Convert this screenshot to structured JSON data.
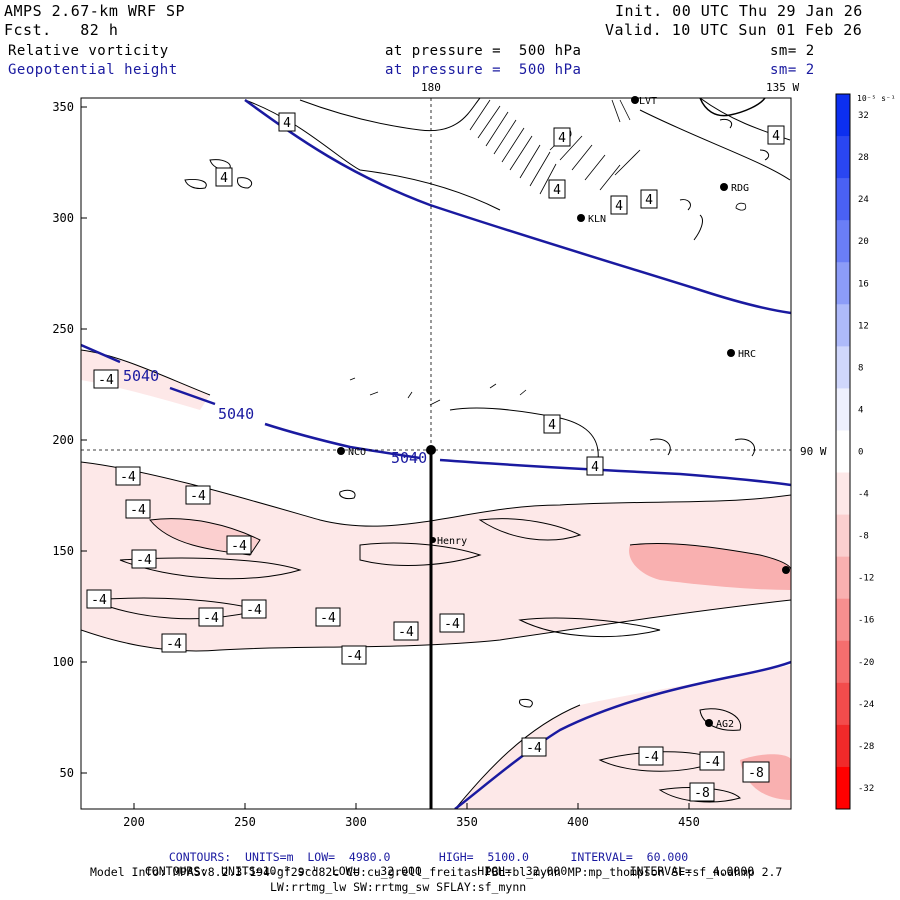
{
  "header": {
    "model": "AMPS 2.67-km WRF SP",
    "forecast": "Fcst.   82 h",
    "init": "Init. 00 UTC Thu 29 Jan 26",
    "valid": "Valid. 10 UTC Sun 01 Feb 26",
    "field1": "Relative vorticity",
    "field1_level": "at pressure =  500 hPa",
    "field1_sm": "sm= 2",
    "field2": "Geopotential height",
    "field2_level": "at pressure =  500 hPa",
    "field2_sm": "sm= 2",
    "colors": {
      "field2": "#1a1aa0"
    }
  },
  "map": {
    "x_ticks": [
      "200",
      "250",
      "300",
      "350",
      "400",
      "450"
    ],
    "y_ticks": [
      "350",
      "300",
      "250",
      "200",
      "150",
      "100",
      "50"
    ],
    "lon_top_180": "180",
    "lon_top_135w": "135 W",
    "lon_right_90w": "90 W",
    "stations": [
      {
        "id": "LVT",
        "label": "LVT"
      },
      {
        "id": "RDG",
        "label": "RDG"
      },
      {
        "id": "KLN",
        "label": "KLN"
      },
      {
        "id": "HRC",
        "label": "HRC"
      },
      {
        "id": "NCO",
        "label": "NCO"
      },
      {
        "id": "Henry",
        "label": "Henry"
      },
      {
        "id": "AG2",
        "label": "AG2"
      }
    ],
    "height_contour_labels": [
      "5040",
      "5040",
      "5040"
    ],
    "vort_labels": [
      "4",
      "4",
      "4",
      "4",
      "4",
      "4",
      "4",
      "4",
      "4",
      "-4",
      "-4",
      "-4",
      "-4",
      "-4",
      "-4",
      "-4",
      "-4",
      "-4",
      "-4",
      "-4",
      "-4",
      "-4",
      "-4",
      "-4",
      "-4",
      "-4",
      "-8"
    ]
  },
  "colorbar": {
    "unit": "10⁻⁵ s⁻¹",
    "labels": [
      "32",
      "28",
      "24",
      "20",
      "16",
      "12",
      "8",
      "4",
      "0",
      "-4",
      "-8",
      "-12",
      "-16",
      "-20",
      "-24",
      "-28",
      "-32"
    ],
    "colors": [
      "#0c2ff0",
      "#2a46f2",
      "#4a61f4",
      "#6a7ef6",
      "#8c9cf8",
      "#aebafa",
      "#d0d7fc",
      "#eef0fe",
      "#ffffff",
      "#fde8e8",
      "#fbcfcf",
      "#f9b0b0",
      "#f78f8f",
      "#f56e6e",
      "#f34c4c",
      "#f12a2a",
      "#ff0000"
    ]
  },
  "footer": {
    "line1_label": "CONTOURS:",
    "line1_units": "UNITS=m",
    "line1_low": "LOW=  4980.0",
    "line1_high": "HIGH=  5100.0",
    "line1_interval": "INTERVAL=  60.000",
    "line2_label": "CONTOURS:",
    "line2_units": "UNITS=10⁻⁵ s⁻¹",
    "line2_low": "LOW=  -32.000",
    "line2_high": "HIGH=  32.000",
    "line2_interval": "INTERVAL=   4.0000",
    "model_info": "Model Info: MPASv8.2.3-194-gf29cd82c CU:cu_grell_freitas PBL:bl_mynn MP:mp_thompson SF:sf_noahmp 2.7",
    "model_info2": "LW:rrtmg_lw SW:rrtmg_sw SFLAY:sf_mynn"
  }
}
